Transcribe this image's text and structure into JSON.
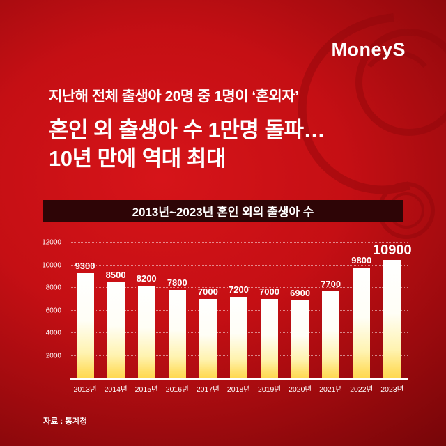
{
  "logo": {
    "text": "MoneyS"
  },
  "headline": {
    "kicker": "지난해 전체 출생아 20명 중 1명이 ‘혼외자’",
    "line1": "혼인 외 출생아 수 1만명 돌파…",
    "line2": "10년 만에 역대 최대"
  },
  "source": "자료 : 통계청",
  "colors": {
    "background_red": "#c50f14",
    "banner_dark": "#2e0506",
    "bar_top": "#ffffff",
    "bar_bottom": "#ffd84f",
    "text": "#ffffff"
  },
  "chart_data": {
    "type": "bar",
    "title": "2013년~2023년 혼인 외의 출생아 수",
    "categories": [
      "2013년",
      "2014년",
      "2015년",
      "2016년",
      "2017년",
      "2018년",
      "2019년",
      "2020년",
      "2021년",
      "2022년",
      "2023년"
    ],
    "values": [
      9300,
      8500,
      8200,
      7800,
      7000,
      7200,
      7000,
      6900,
      7700,
      9800,
      10900
    ],
    "xlabel": "",
    "ylabel": "",
    "ylim": [
      0,
      12000
    ],
    "yticks": [
      2000,
      4000,
      6000,
      8000,
      10000,
      12000
    ],
    "grid": true,
    "legend": false,
    "highlight_last_value": true
  }
}
